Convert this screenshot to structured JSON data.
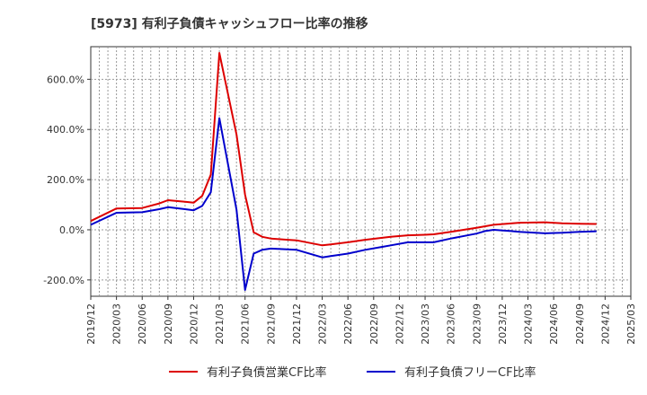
{
  "chart_data": {
    "type": "line",
    "title": "[5973]  有利子負債キャッシュフロー比率の推移",
    "xlabel": "",
    "ylabel": "",
    "ylim": [
      -265,
      730
    ],
    "y_ticks": [
      {
        "value": 600,
        "label": "600.0%"
      },
      {
        "value": 400,
        "label": "400.0%"
      },
      {
        "value": 200,
        "label": "200.0%"
      },
      {
        "value": 0,
        "label": "0.0%"
      },
      {
        "value": -200,
        "label": "-200.0%"
      }
    ],
    "x_ticks": [
      "2019/12",
      "2020/03",
      "2020/06",
      "2020/09",
      "2020/12",
      "2021/03",
      "2021/06",
      "2021/09",
      "2021/12",
      "2022/03",
      "2022/06",
      "2022/09",
      "2022/12",
      "2023/03",
      "2023/06",
      "2023/09",
      "2023/12",
      "2024/03",
      "2024/06",
      "2024/09",
      "2024/12",
      "2025/03"
    ],
    "x_range": [
      0,
      63
    ],
    "grid": true,
    "legend_position": "bottom",
    "series": [
      {
        "name": "有利子負債営業CF比率",
        "color": "#dd0000",
        "points": [
          [
            0,
            35
          ],
          [
            3,
            85
          ],
          [
            6,
            87
          ],
          [
            8,
            105
          ],
          [
            9,
            118
          ],
          [
            11,
            112
          ],
          [
            12,
            108
          ],
          [
            13,
            135
          ],
          [
            14,
            220
          ],
          [
            15,
            705
          ],
          [
            17,
            380
          ],
          [
            18,
            140
          ],
          [
            19,
            -10
          ],
          [
            20,
            -28
          ],
          [
            21,
            -35
          ],
          [
            23,
            -40
          ],
          [
            24,
            -42
          ],
          [
            27,
            -62
          ],
          [
            28,
            -58
          ],
          [
            30,
            -50
          ],
          [
            32,
            -40
          ],
          [
            33,
            -36
          ],
          [
            35,
            -28
          ],
          [
            37,
            -22
          ],
          [
            39,
            -20
          ],
          [
            40,
            -18
          ],
          [
            42,
            -8
          ],
          [
            45,
            8
          ],
          [
            47,
            20
          ],
          [
            50,
            28
          ],
          [
            53,
            30
          ],
          [
            55,
            26
          ],
          [
            57,
            24
          ],
          [
            59,
            23
          ]
        ]
      },
      {
        "name": "有利子負債フリーCF比率",
        "color": "#0000cc",
        "points": [
          [
            0,
            20
          ],
          [
            3,
            68
          ],
          [
            6,
            70
          ],
          [
            8,
            82
          ],
          [
            9,
            90
          ],
          [
            11,
            82
          ],
          [
            12,
            78
          ],
          [
            13,
            95
          ],
          [
            14,
            150
          ],
          [
            15,
            445
          ],
          [
            17,
            80
          ],
          [
            18,
            -240
          ],
          [
            19,
            -95
          ],
          [
            20,
            -80
          ],
          [
            21,
            -75
          ],
          [
            24,
            -80
          ],
          [
            27,
            -110
          ],
          [
            28,
            -105
          ],
          [
            30,
            -95
          ],
          [
            32,
            -80
          ],
          [
            34,
            -68
          ],
          [
            35,
            -62
          ],
          [
            37,
            -50
          ],
          [
            40,
            -50
          ],
          [
            42,
            -35
          ],
          [
            45,
            -15
          ],
          [
            46,
            -5
          ],
          [
            47,
            0
          ],
          [
            49,
            -5
          ],
          [
            50,
            -8
          ],
          [
            53,
            -14
          ],
          [
            55,
            -12
          ],
          [
            57,
            -8
          ],
          [
            59,
            -6
          ]
        ]
      }
    ]
  }
}
